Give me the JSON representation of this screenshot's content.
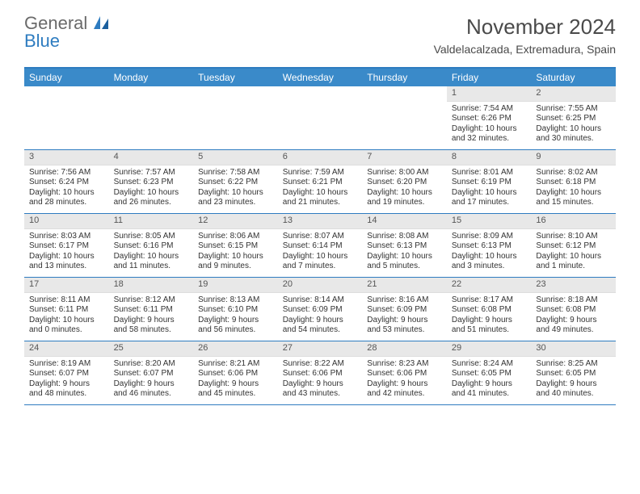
{
  "brand": {
    "line1": "General",
    "line2": "Blue"
  },
  "title": "November 2024",
  "location": "Valdelacalzada, Extremadura, Spain",
  "colors": {
    "header_bg": "#3a8ac9",
    "border": "#2e7cc0",
    "daynum_bg": "#e8e8e8",
    "text": "#333333",
    "brand_grey": "#6a6a6a",
    "brand_blue": "#2e7cc0"
  },
  "day_labels": [
    "Sunday",
    "Monday",
    "Tuesday",
    "Wednesday",
    "Thursday",
    "Friday",
    "Saturday"
  ],
  "weeks": [
    [
      {
        "n": "",
        "sr": "",
        "ss": "",
        "dl": ""
      },
      {
        "n": "",
        "sr": "",
        "ss": "",
        "dl": ""
      },
      {
        "n": "",
        "sr": "",
        "ss": "",
        "dl": ""
      },
      {
        "n": "",
        "sr": "",
        "ss": "",
        "dl": ""
      },
      {
        "n": "",
        "sr": "",
        "ss": "",
        "dl": ""
      },
      {
        "n": "1",
        "sr": "Sunrise: 7:54 AM",
        "ss": "Sunset: 6:26 PM",
        "dl": "Daylight: 10 hours and 32 minutes."
      },
      {
        "n": "2",
        "sr": "Sunrise: 7:55 AM",
        "ss": "Sunset: 6:25 PM",
        "dl": "Daylight: 10 hours and 30 minutes."
      }
    ],
    [
      {
        "n": "3",
        "sr": "Sunrise: 7:56 AM",
        "ss": "Sunset: 6:24 PM",
        "dl": "Daylight: 10 hours and 28 minutes."
      },
      {
        "n": "4",
        "sr": "Sunrise: 7:57 AM",
        "ss": "Sunset: 6:23 PM",
        "dl": "Daylight: 10 hours and 26 minutes."
      },
      {
        "n": "5",
        "sr": "Sunrise: 7:58 AM",
        "ss": "Sunset: 6:22 PM",
        "dl": "Daylight: 10 hours and 23 minutes."
      },
      {
        "n": "6",
        "sr": "Sunrise: 7:59 AM",
        "ss": "Sunset: 6:21 PM",
        "dl": "Daylight: 10 hours and 21 minutes."
      },
      {
        "n": "7",
        "sr": "Sunrise: 8:00 AM",
        "ss": "Sunset: 6:20 PM",
        "dl": "Daylight: 10 hours and 19 minutes."
      },
      {
        "n": "8",
        "sr": "Sunrise: 8:01 AM",
        "ss": "Sunset: 6:19 PM",
        "dl": "Daylight: 10 hours and 17 minutes."
      },
      {
        "n": "9",
        "sr": "Sunrise: 8:02 AM",
        "ss": "Sunset: 6:18 PM",
        "dl": "Daylight: 10 hours and 15 minutes."
      }
    ],
    [
      {
        "n": "10",
        "sr": "Sunrise: 8:03 AM",
        "ss": "Sunset: 6:17 PM",
        "dl": "Daylight: 10 hours and 13 minutes."
      },
      {
        "n": "11",
        "sr": "Sunrise: 8:05 AM",
        "ss": "Sunset: 6:16 PM",
        "dl": "Daylight: 10 hours and 11 minutes."
      },
      {
        "n": "12",
        "sr": "Sunrise: 8:06 AM",
        "ss": "Sunset: 6:15 PM",
        "dl": "Daylight: 10 hours and 9 minutes."
      },
      {
        "n": "13",
        "sr": "Sunrise: 8:07 AM",
        "ss": "Sunset: 6:14 PM",
        "dl": "Daylight: 10 hours and 7 minutes."
      },
      {
        "n": "14",
        "sr": "Sunrise: 8:08 AM",
        "ss": "Sunset: 6:13 PM",
        "dl": "Daylight: 10 hours and 5 minutes."
      },
      {
        "n": "15",
        "sr": "Sunrise: 8:09 AM",
        "ss": "Sunset: 6:13 PM",
        "dl": "Daylight: 10 hours and 3 minutes."
      },
      {
        "n": "16",
        "sr": "Sunrise: 8:10 AM",
        "ss": "Sunset: 6:12 PM",
        "dl": "Daylight: 10 hours and 1 minute."
      }
    ],
    [
      {
        "n": "17",
        "sr": "Sunrise: 8:11 AM",
        "ss": "Sunset: 6:11 PM",
        "dl": "Daylight: 10 hours and 0 minutes."
      },
      {
        "n": "18",
        "sr": "Sunrise: 8:12 AM",
        "ss": "Sunset: 6:11 PM",
        "dl": "Daylight: 9 hours and 58 minutes."
      },
      {
        "n": "19",
        "sr": "Sunrise: 8:13 AM",
        "ss": "Sunset: 6:10 PM",
        "dl": "Daylight: 9 hours and 56 minutes."
      },
      {
        "n": "20",
        "sr": "Sunrise: 8:14 AM",
        "ss": "Sunset: 6:09 PM",
        "dl": "Daylight: 9 hours and 54 minutes."
      },
      {
        "n": "21",
        "sr": "Sunrise: 8:16 AM",
        "ss": "Sunset: 6:09 PM",
        "dl": "Daylight: 9 hours and 53 minutes."
      },
      {
        "n": "22",
        "sr": "Sunrise: 8:17 AM",
        "ss": "Sunset: 6:08 PM",
        "dl": "Daylight: 9 hours and 51 minutes."
      },
      {
        "n": "23",
        "sr": "Sunrise: 8:18 AM",
        "ss": "Sunset: 6:08 PM",
        "dl": "Daylight: 9 hours and 49 minutes."
      }
    ],
    [
      {
        "n": "24",
        "sr": "Sunrise: 8:19 AM",
        "ss": "Sunset: 6:07 PM",
        "dl": "Daylight: 9 hours and 48 minutes."
      },
      {
        "n": "25",
        "sr": "Sunrise: 8:20 AM",
        "ss": "Sunset: 6:07 PM",
        "dl": "Daylight: 9 hours and 46 minutes."
      },
      {
        "n": "26",
        "sr": "Sunrise: 8:21 AM",
        "ss": "Sunset: 6:06 PM",
        "dl": "Daylight: 9 hours and 45 minutes."
      },
      {
        "n": "27",
        "sr": "Sunrise: 8:22 AM",
        "ss": "Sunset: 6:06 PM",
        "dl": "Daylight: 9 hours and 43 minutes."
      },
      {
        "n": "28",
        "sr": "Sunrise: 8:23 AM",
        "ss": "Sunset: 6:06 PM",
        "dl": "Daylight: 9 hours and 42 minutes."
      },
      {
        "n": "29",
        "sr": "Sunrise: 8:24 AM",
        "ss": "Sunset: 6:05 PM",
        "dl": "Daylight: 9 hours and 41 minutes."
      },
      {
        "n": "30",
        "sr": "Sunrise: 8:25 AM",
        "ss": "Sunset: 6:05 PM",
        "dl": "Daylight: 9 hours and 40 minutes."
      }
    ]
  ]
}
